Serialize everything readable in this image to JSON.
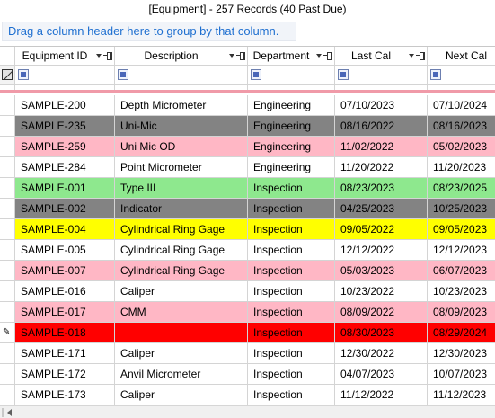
{
  "title": "[Equipment] - 257 Records (40 Past Due)",
  "group_panel_text": "Drag a column header here to group by that column.",
  "columns": [
    {
      "label": "Equipment ID"
    },
    {
      "label": "Description"
    },
    {
      "label": "Department"
    },
    {
      "label": "Last Cal"
    },
    {
      "label": "Next Cal"
    }
  ],
  "colors": {
    "gray": "#838383",
    "pink": "#ffb7c5",
    "green": "#8ee88e",
    "yellow": "#ffff00",
    "red": "#ff0000",
    "white": "#ffffff"
  },
  "rows": [
    {
      "id": "SAMPLE-200",
      "description": "Depth Micrometer",
      "department": "Engineering",
      "last_cal": "07/10/2023",
      "next_cal": "07/10/2024",
      "color": "white"
    },
    {
      "id": "SAMPLE-235",
      "description": "Uni-Mic",
      "department": "Engineering",
      "last_cal": "08/16/2022",
      "next_cal": "08/16/2023",
      "color": "gray"
    },
    {
      "id": "SAMPLE-259",
      "description": "Uni Mic OD",
      "department": "Engineering",
      "last_cal": "11/02/2022",
      "next_cal": "05/02/2023",
      "color": "pink"
    },
    {
      "id": "SAMPLE-284",
      "description": "Point Micrometer",
      "department": "Engineering",
      "last_cal": "11/20/2022",
      "next_cal": "11/20/2023",
      "color": "white"
    },
    {
      "id": "SAMPLE-001",
      "description": "Type III",
      "department": "Inspection",
      "last_cal": "08/23/2023",
      "next_cal": "08/23/2025",
      "color": "green"
    },
    {
      "id": "SAMPLE-002",
      "description": "Indicator",
      "department": "Inspection",
      "last_cal": "04/25/2023",
      "next_cal": "10/25/2023",
      "color": "gray"
    },
    {
      "id": "SAMPLE-004",
      "description": "Cylindrical Ring Gage",
      "department": "Inspection",
      "last_cal": "09/05/2022",
      "next_cal": "09/05/2023",
      "color": "yellow"
    },
    {
      "id": "SAMPLE-005",
      "description": "Cylindrical Ring Gage",
      "department": "Inspection",
      "last_cal": "12/12/2022",
      "next_cal": "12/12/2023",
      "color": "white"
    },
    {
      "id": "SAMPLE-007",
      "description": "Cylindrical Ring Gage",
      "department": "Inspection",
      "last_cal": "05/03/2023",
      "next_cal": "06/07/2023",
      "color": "pink"
    },
    {
      "id": "SAMPLE-016",
      "description": "Caliper",
      "department": "Inspection",
      "last_cal": "10/23/2022",
      "next_cal": "10/23/2023",
      "color": "white"
    },
    {
      "id": "SAMPLE-017",
      "description": "CMM",
      "department": "Inspection",
      "last_cal": "08/09/2022",
      "next_cal": "08/09/2023",
      "color": "pink"
    },
    {
      "id": "SAMPLE-018",
      "description": "",
      "department": "Inspection",
      "last_cal": "08/30/2023",
      "next_cal": "08/29/2024",
      "color": "red",
      "editing": true
    },
    {
      "id": "SAMPLE-171",
      "description": "Caliper",
      "department": "Inspection",
      "last_cal": "12/30/2022",
      "next_cal": "12/30/2023",
      "color": "white"
    },
    {
      "id": "SAMPLE-172",
      "description": "Anvil Micrometer",
      "department": "Inspection",
      "last_cal": "04/07/2023",
      "next_cal": "10/07/2023",
      "color": "white"
    },
    {
      "id": "SAMPLE-173",
      "description": "Caliper",
      "department": "Inspection",
      "last_cal": "11/12/2022",
      "next_cal": "11/12/2023",
      "color": "white"
    }
  ]
}
